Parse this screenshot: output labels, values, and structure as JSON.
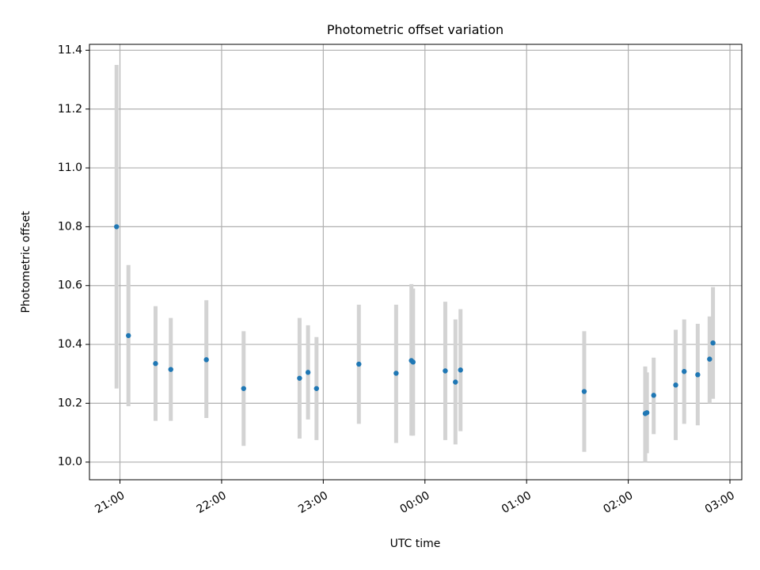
{
  "chart_data": {
    "type": "scatter",
    "title": "Photometric offset variation",
    "xlabel": "UTC time",
    "ylabel": "Photometric offset",
    "x_ticks": [
      "21:00",
      "22:00",
      "23:00",
      "00:00",
      "01:00",
      "02:00",
      "03:00"
    ],
    "y_ticks": [
      "10.0",
      "10.2",
      "10.4",
      "10.6",
      "10.8",
      "11.0",
      "11.2",
      "11.4"
    ],
    "xlim": [
      "20:42",
      "03:07"
    ],
    "ylim": [
      9.94,
      11.42
    ],
    "grid": true,
    "legend": "none",
    "colors": {
      "point": "#1f77b4",
      "errorbar": "#d3d3d3",
      "grid": "#b0b0b0"
    },
    "points": [
      {
        "x": "20:58",
        "y": 10.8,
        "ylow": 10.25,
        "yhigh": 11.35
      },
      {
        "x": "21:05",
        "y": 10.43,
        "ylow": 10.19,
        "yhigh": 10.67
      },
      {
        "x": "21:21",
        "y": 10.335,
        "ylow": 10.14,
        "yhigh": 10.53
      },
      {
        "x": "21:30",
        "y": 10.315,
        "ylow": 10.14,
        "yhigh": 10.49
      },
      {
        "x": "21:51",
        "y": 10.348,
        "ylow": 10.15,
        "yhigh": 10.55
      },
      {
        "x": "22:13",
        "y": 10.25,
        "ylow": 10.055,
        "yhigh": 10.445
      },
      {
        "x": "22:46",
        "y": 10.285,
        "ylow": 10.08,
        "yhigh": 10.49
      },
      {
        "x": "22:51",
        "y": 10.305,
        "ylow": 10.145,
        "yhigh": 10.465
      },
      {
        "x": "22:56",
        "y": 10.25,
        "ylow": 10.075,
        "yhigh": 10.425
      },
      {
        "x": "23:21",
        "y": 10.333,
        "ylow": 10.13,
        "yhigh": 10.535
      },
      {
        "x": "23:43",
        "y": 10.302,
        "ylow": 10.065,
        "yhigh": 10.535
      },
      {
        "x": "23:52",
        "y": 10.345,
        "ylow": 10.09,
        "yhigh": 10.605
      },
      {
        "x": "23:53",
        "y": 10.34,
        "ylow": 10.09,
        "yhigh": 10.59
      },
      {
        "x": "00:12",
        "y": 10.31,
        "ylow": 10.075,
        "yhigh": 10.545
      },
      {
        "x": "00:18",
        "y": 10.272,
        "ylow": 10.06,
        "yhigh": 10.485
      },
      {
        "x": "00:21",
        "y": 10.313,
        "ylow": 10.105,
        "yhigh": 10.52
      },
      {
        "x": "01:34",
        "y": 10.24,
        "ylow": 10.035,
        "yhigh": 10.445
      },
      {
        "x": "02:10",
        "y": 10.165,
        "ylow": 10.0,
        "yhigh": 10.325
      },
      {
        "x": "02:11",
        "y": 10.168,
        "ylow": 10.03,
        "yhigh": 10.305
      },
      {
        "x": "02:15",
        "y": 10.227,
        "ylow": 10.095,
        "yhigh": 10.355
      },
      {
        "x": "02:28",
        "y": 10.262,
        "ylow": 10.075,
        "yhigh": 10.45
      },
      {
        "x": "02:33",
        "y": 10.308,
        "ylow": 10.13,
        "yhigh": 10.485
      },
      {
        "x": "02:41",
        "y": 10.297,
        "ylow": 10.125,
        "yhigh": 10.47
      },
      {
        "x": "02:48",
        "y": 10.35,
        "ylow": 10.2,
        "yhigh": 10.495
      },
      {
        "x": "02:50",
        "y": 10.405,
        "ylow": 10.215,
        "yhigh": 10.595
      }
    ]
  }
}
